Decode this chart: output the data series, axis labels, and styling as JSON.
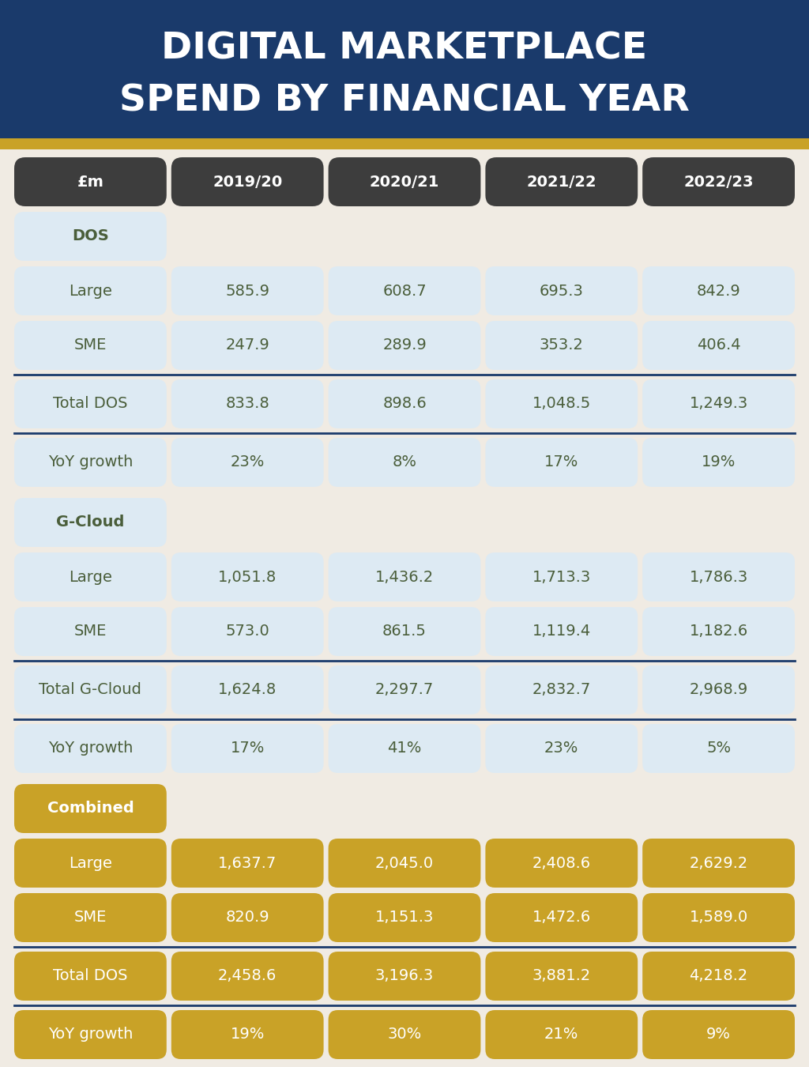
{
  "title_line1": "DIGITAL MARKETPLACE",
  "title_line2": "SPEND BY FINANCIAL YEAR",
  "title_bg": "#1a3a6b",
  "title_color": "#ffffff",
  "accent_line_color": "#c9a227",
  "bg_color": "#f0ebe3",
  "header_bg": "#3d3d3d",
  "header_color": "#ffffff",
  "cell_bg_light": "#ddeaf3",
  "cell_bg_white": "#eef4f8",
  "text_color_dark": "#4a5e3a",
  "combined_bg": "#c9a227",
  "combined_text": "#ffffff",
  "separator_color": "#1a3a6b",
  "headers": [
    "£m",
    "2019/20",
    "2020/21",
    "2021/22",
    "2022/23"
  ],
  "dos_rows": [
    {
      "label": "Large",
      "values": [
        "585.9",
        "608.7",
        "695.3",
        "842.9"
      ]
    },
    {
      "label": "SME",
      "values": [
        "247.9",
        "289.9",
        "353.2",
        "406.4"
      ]
    },
    {
      "label": "Total DOS",
      "values": [
        "833.8",
        "898.6",
        "1,048.5",
        "1,249.3"
      ]
    },
    {
      "label": "YoY growth",
      "values": [
        "23%",
        "8%",
        "17%",
        "19%"
      ]
    }
  ],
  "gcloud_rows": [
    {
      "label": "Large",
      "values": [
        "1,051.8",
        "1,436.2",
        "1,713.3",
        "1,786.3"
      ]
    },
    {
      "label": "SME",
      "values": [
        "573.0",
        "861.5",
        "1,119.4",
        "1,182.6"
      ]
    },
    {
      "label": "Total G-Cloud",
      "values": [
        "1,624.8",
        "2,297.7",
        "2,832.7",
        "2,968.9"
      ]
    },
    {
      "label": "YoY growth",
      "values": [
        "17%",
        "41%",
        "23%",
        "5%"
      ]
    }
  ],
  "combined_rows": [
    {
      "label": "Large",
      "values": [
        "1,637.7",
        "2,045.0",
        "2,408.6",
        "2,629.2"
      ]
    },
    {
      "label": "SME",
      "values": [
        "820.9",
        "1,151.3",
        "1,472.6",
        "1,589.0"
      ]
    },
    {
      "label": "Total DOS",
      "values": [
        "2,458.6",
        "3,196.3",
        "3,881.2",
        "4,218.2"
      ]
    },
    {
      "label": "YoY growth",
      "values": [
        "19%",
        "30%",
        "21%",
        "9%"
      ]
    }
  ]
}
